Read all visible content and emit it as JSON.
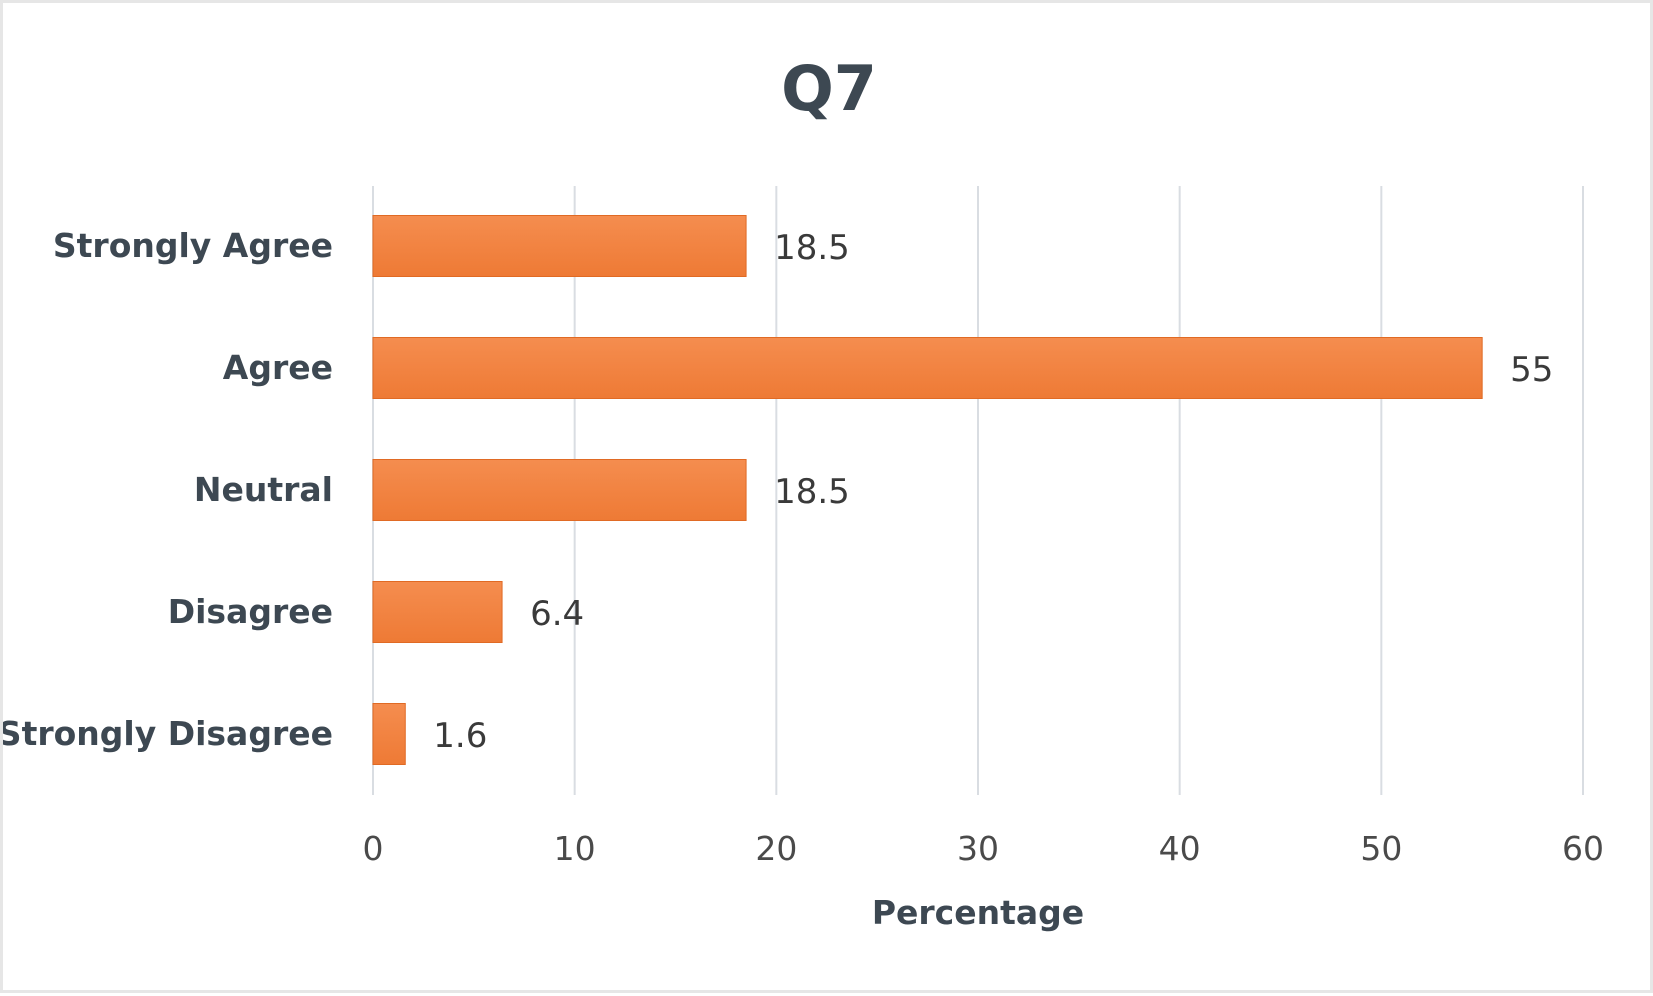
{
  "chart_data": {
    "type": "bar",
    "orientation": "horizontal",
    "title": "Q7",
    "xlabel": "Percentage",
    "ylabel": "",
    "categories": [
      "Strongly Agree",
      "Agree",
      "Neutral",
      "Disagree",
      "Strongly Disagree"
    ],
    "values": [
      18.5,
      55,
      18.5,
      6.4,
      1.6
    ],
    "data_labels": [
      "18.5",
      "55",
      "18.5",
      "6.4",
      "1.6"
    ],
    "xlim": [
      0,
      60
    ],
    "xticks": [
      0,
      10,
      20,
      30,
      40,
      50,
      60
    ],
    "grid": "vertical",
    "legend": "none",
    "colors": {
      "bar": "#ee7a35",
      "bar_highlight": "#f58d4f",
      "bar_border": "#e06a24",
      "grid": "#d9dde2",
      "text": "#3d4852"
    }
  }
}
